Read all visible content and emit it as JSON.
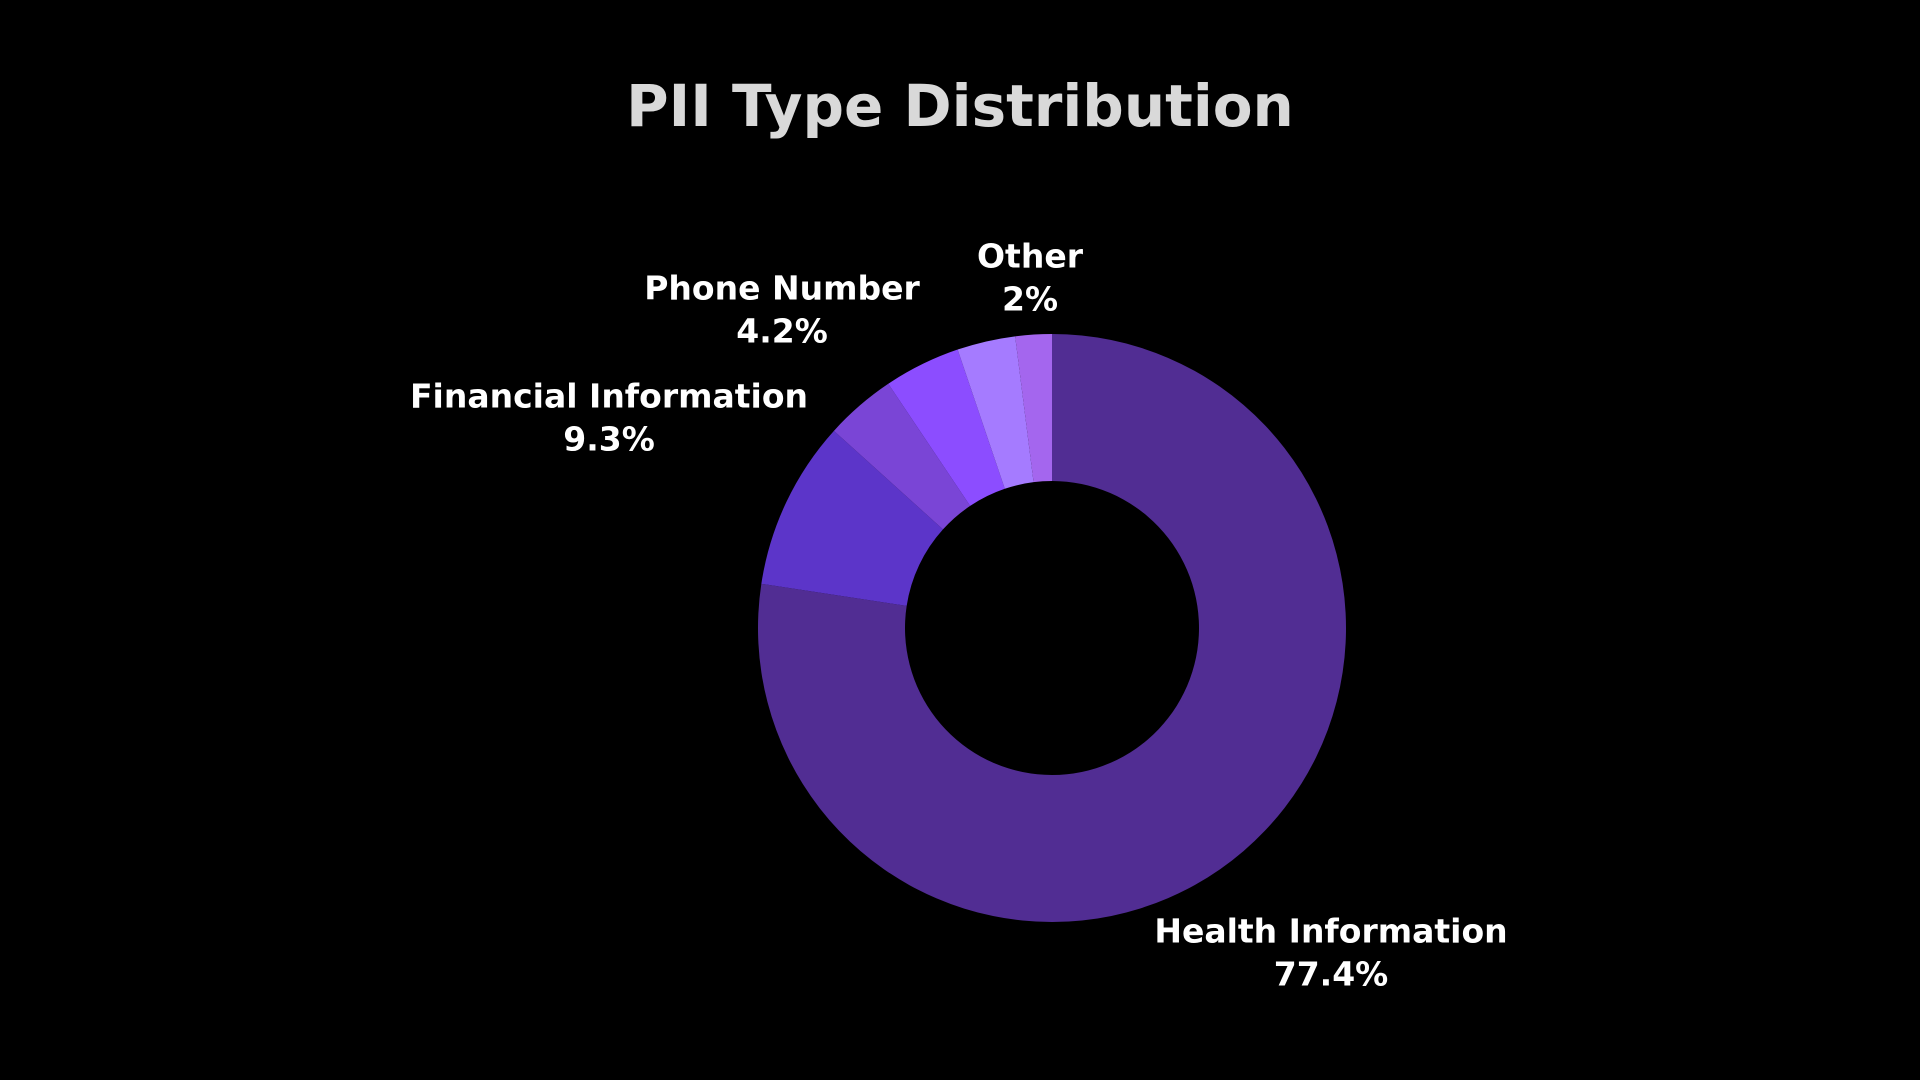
{
  "chart_data": {
    "type": "pie",
    "title": "PII Type Distribution",
    "categories": [
      "Health Information",
      "Financial Information",
      null,
      "Phone Number",
      null,
      "Other"
    ],
    "values": [
      77.4,
      9.3,
      3.9,
      4.2,
      3.2,
      2
    ],
    "value_labels": [
      "77.4%",
      "9.3%",
      null,
      "4.2%",
      null,
      "2%"
    ],
    "colors": [
      "#512d93",
      "#5c35c9",
      "#7a45d6",
      "#8c4dff",
      "#a57bff",
      "#a466ee"
    ]
  }
}
